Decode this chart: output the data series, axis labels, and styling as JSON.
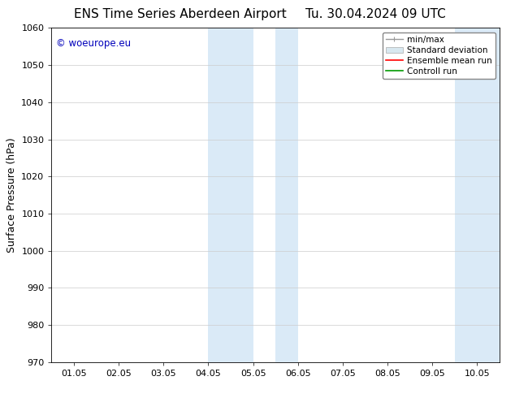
{
  "title_left": "ENS Time Series Aberdeen Airport",
  "title_right": "Tu. 30.04.2024 09 UTC",
  "ylabel": "Surface Pressure (hPa)",
  "ylim": [
    970,
    1060
  ],
  "yticks": [
    970,
    980,
    990,
    1000,
    1010,
    1020,
    1030,
    1040,
    1050,
    1060
  ],
  "xlabel_ticks": [
    "01.05",
    "02.05",
    "03.05",
    "04.05",
    "05.05",
    "06.05",
    "07.05",
    "08.05",
    "09.05",
    "10.05"
  ],
  "x_positions": [
    0,
    1,
    2,
    3,
    4,
    5,
    6,
    7,
    8,
    9
  ],
  "xlim": [
    -0.5,
    9.5
  ],
  "shaded_regions": [
    {
      "x_start": 3.0,
      "x_end": 4.0,
      "color": "#daeaf7"
    },
    {
      "x_start": 4.5,
      "x_end": 5.0,
      "color": "#daeaf7"
    },
    {
      "x_start": 8.5,
      "x_end": 9.0,
      "color": "#daeaf7"
    },
    {
      "x_start": 9.0,
      "x_end": 9.5,
      "color": "#daeaf7"
    }
  ],
  "watermark_text": "© woeurope.eu",
  "watermark_color": "#0000bb",
  "legend_labels": [
    "min/max",
    "Standard deviation",
    "Ensemble mean run",
    "Controll run"
  ],
  "legend_line_colors": [
    "#999999",
    "#ccddee",
    "#ff0000",
    "#009900"
  ],
  "background_color": "#ffffff",
  "plot_bg_color": "#ffffff",
  "title_fontsize": 11,
  "tick_fontsize": 8,
  "ylabel_fontsize": 9,
  "legend_fontsize": 7.5
}
